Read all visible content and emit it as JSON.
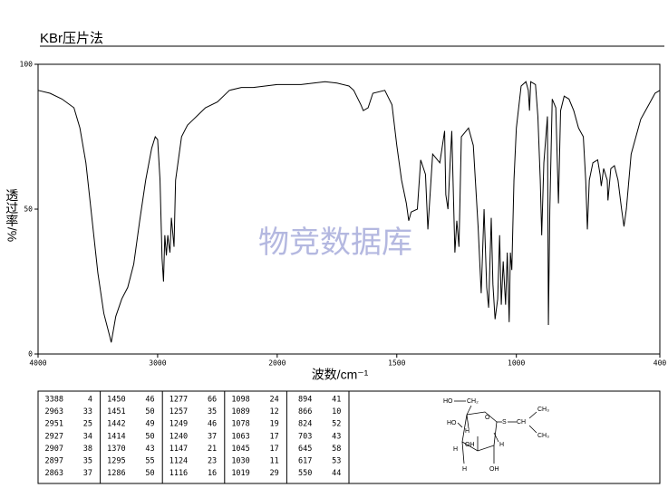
{
  "title": "KBr压片法",
  "watermark": "物竞数据库",
  "chart_data": {
    "type": "line",
    "xlabel": "波数/cm⁻¹",
    "ylabel": "透过率/%",
    "xlim": [
      4000,
      400
    ],
    "xticks": [
      4000,
      3000,
      2000,
      1500,
      1000,
      400
    ],
    "x_scale_break": 2000,
    "ylim": [
      0,
      100
    ],
    "yticks": [
      0,
      50,
      100
    ],
    "grid": false,
    "color": "#000000",
    "x": [
      4000,
      3900,
      3800,
      3700,
      3650,
      3600,
      3550,
      3500,
      3450,
      3400,
      3388,
      3350,
      3300,
      3250,
      3200,
      3150,
      3100,
      3050,
      3020,
      3000,
      2980,
      2963,
      2951,
      2940,
      2927,
      2915,
      2907,
      2897,
      2885,
      2863,
      2850,
      2800,
      2750,
      2700,
      2600,
      2500,
      2400,
      2300,
      2200,
      2100,
      2000,
      1900,
      1800,
      1750,
      1700,
      1680,
      1650,
      1640,
      1620,
      1600,
      1550,
      1520,
      1500,
      1480,
      1460,
      1450,
      1440,
      1414,
      1400,
      1380,
      1370,
      1350,
      1320,
      1300,
      1295,
      1286,
      1277,
      1270,
      1257,
      1249,
      1240,
      1230,
      1200,
      1180,
      1160,
      1147,
      1135,
      1124,
      1116,
      1105,
      1098,
      1089,
      1078,
      1070,
      1063,
      1055,
      1045,
      1038,
      1030,
      1025,
      1019,
      1010,
      1000,
      980,
      960,
      950,
      945,
      940,
      920,
      910,
      900,
      894,
      885,
      870,
      866,
      860,
      850,
      835,
      824,
      815,
      800,
      780,
      760,
      740,
      720,
      710,
      703,
      695,
      680,
      660,
      650,
      645,
      635,
      620,
      617,
      605,
      590,
      575,
      560,
      550,
      540,
      520,
      500,
      480,
      460,
      440,
      420,
      400
    ],
    "values": [
      91,
      90,
      88,
      85,
      78,
      66,
      47,
      28,
      14,
      6,
      4,
      13,
      19,
      23,
      31,
      46,
      60,
      71,
      75,
      74,
      60,
      33,
      25,
      41,
      34,
      41,
      38,
      35,
      47,
      37,
      60,
      75,
      79,
      81,
      85,
      87,
      91,
      92,
      92,
      92.5,
      93,
      93,
      94,
      93.5,
      92.5,
      91,
      86,
      84,
      85,
      90,
      91,
      86,
      72,
      60,
      52,
      46,
      49,
      50,
      67,
      62,
      43,
      69,
      66,
      77,
      55,
      50,
      66,
      77,
      35,
      46,
      37,
      75,
      78,
      72,
      44,
      21,
      50,
      23,
      16,
      47,
      24,
      12,
      19,
      41,
      17,
      32,
      17,
      35,
      11,
      35,
      29,
      60,
      78,
      92.5,
      94,
      91,
      84,
      94,
      93,
      82,
      60,
      41,
      66,
      82,
      10,
      50,
      88,
      85,
      52,
      84,
      89,
      88,
      84,
      78,
      75,
      60,
      43,
      60,
      66,
      67,
      62,
      58,
      64,
      60,
      53,
      64,
      65,
      60,
      50,
      44,
      50,
      69,
      75,
      81,
      84,
      87,
      90,
      91
    ]
  },
  "peak_table": {
    "rows": [
      [
        3388,
        4,
        1450,
        46,
        1277,
        66,
        1098,
        24,
        894,
        41
      ],
      [
        2963,
        33,
        1451,
        50,
        1257,
        35,
        1089,
        12,
        866,
        10
      ],
      [
        2951,
        25,
        1442,
        49,
        1249,
        46,
        1078,
        19,
        824,
        52
      ],
      [
        2927,
        34,
        1414,
        50,
        1240,
        37,
        1063,
        17,
        703,
        43
      ],
      [
        2907,
        38,
        1370,
        43,
        1147,
        21,
        1045,
        17,
        645,
        58
      ],
      [
        2897,
        35,
        1295,
        55,
        1124,
        23,
        1030,
        11,
        617,
        53
      ],
      [
        2863,
        37,
        1286,
        50,
        1116,
        16,
        1019,
        29,
        550,
        44
      ]
    ]
  },
  "structure": {
    "labels": [
      "HO",
      "CH₂",
      "HO",
      "H",
      "OH",
      "O",
      "S",
      "CH",
      "CH₃",
      "CH₃",
      "H",
      "H",
      "H",
      "OH"
    ]
  }
}
